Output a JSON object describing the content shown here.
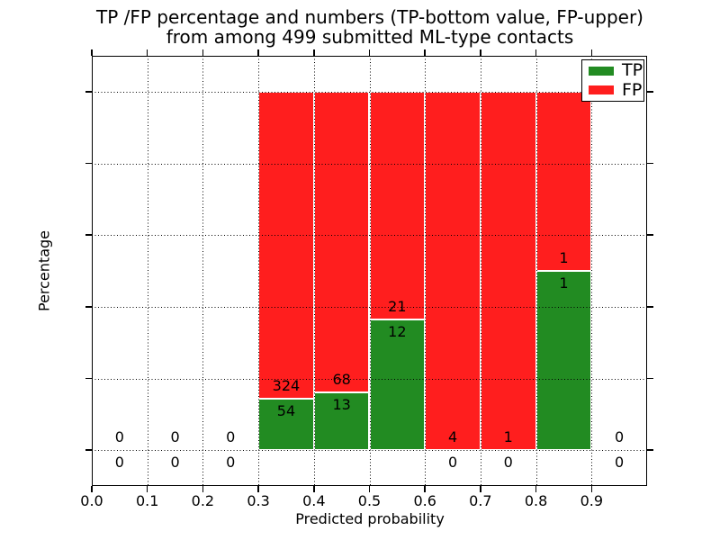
{
  "chart_data": {
    "type": "bar",
    "stacked": true,
    "title_lines": [
      "TP /FP percentage and numbers (TP-bottom value, FP-upper)",
      "from among 499 submitted ML-type contacts"
    ],
    "xlabel": "Predicted probability",
    "ylabel": "Percentage",
    "xlim": [
      0.0,
      1.0
    ],
    "ylim": [
      -10,
      110
    ],
    "xticks": [
      0.0,
      0.1,
      0.2,
      0.3,
      0.4,
      0.5,
      0.6,
      0.7,
      0.8,
      0.9
    ],
    "yticks": [
      0,
      20,
      40,
      60,
      80,
      100
    ],
    "grid": "dotted",
    "grid_above_bars": true,
    "total_contacts": 499,
    "colors": {
      "tp": "#228B22",
      "fp": "#FF1E1E",
      "bar_edge": "#FFFFFF",
      "grid": "#000000"
    },
    "legend": {
      "position": "upper right",
      "entries": [
        {
          "label": "TP",
          "color": "#228B22"
        },
        {
          "label": "FP",
          "color": "#FF1E1E"
        }
      ]
    },
    "bins": [
      {
        "range": [
          0.0,
          0.1
        ],
        "tp": 0,
        "fp": 0,
        "tp_pct": null
      },
      {
        "range": [
          0.1,
          0.2
        ],
        "tp": 0,
        "fp": 0,
        "tp_pct": null
      },
      {
        "range": [
          0.2,
          0.3
        ],
        "tp": 0,
        "fp": 0,
        "tp_pct": null
      },
      {
        "range": [
          0.3,
          0.4
        ],
        "tp": 54,
        "fp": 324,
        "tp_pct": 14.29
      },
      {
        "range": [
          0.4,
          0.5
        ],
        "tp": 13,
        "fp": 68,
        "tp_pct": 16.05
      },
      {
        "range": [
          0.5,
          0.6
        ],
        "tp": 12,
        "fp": 21,
        "tp_pct": 36.36
      },
      {
        "range": [
          0.6,
          0.7
        ],
        "tp": 0,
        "fp": 4,
        "tp_pct": 0
      },
      {
        "range": [
          0.7,
          0.8
        ],
        "tp": 0,
        "fp": 1,
        "tp_pct": 0
      },
      {
        "range": [
          0.8,
          0.9
        ],
        "tp": 1,
        "fp": 1,
        "tp_pct": 50
      },
      {
        "range": [
          0.9,
          1.0
        ],
        "tp": 0,
        "fp": 0,
        "tp_pct": null
      }
    ]
  }
}
